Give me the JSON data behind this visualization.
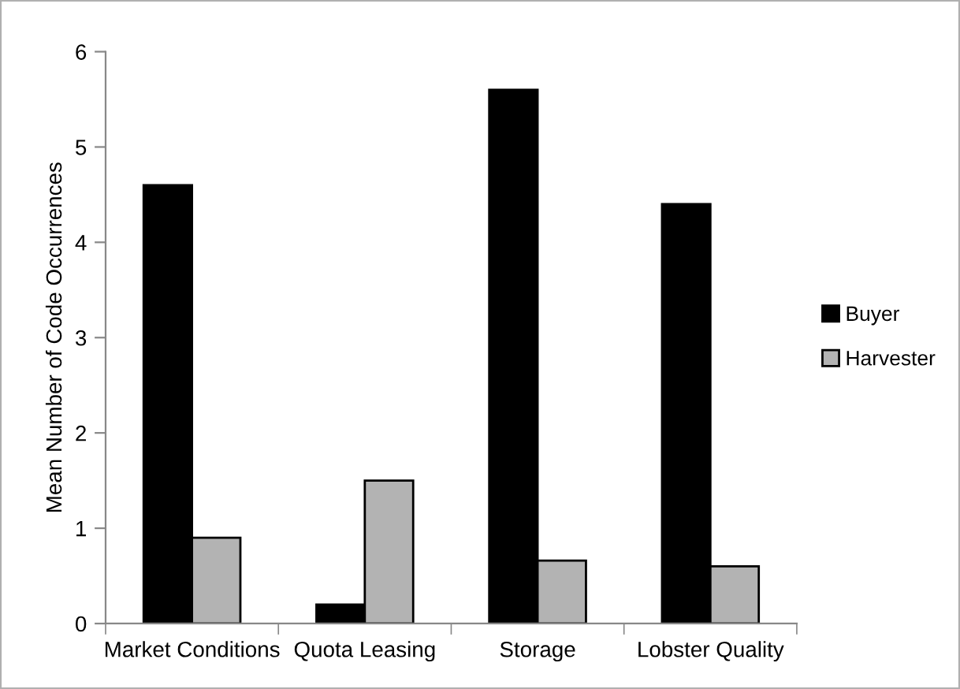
{
  "chart_data": {
    "type": "bar",
    "ylabel": "Mean Number of Code Occurrences",
    "categories": [
      "Market Conditions",
      "Quota Leasing",
      "Storage",
      "Lobster Quality"
    ],
    "series": [
      {
        "name": "Buyer",
        "color": "#000000",
        "values": [
          4.6,
          0.2,
          5.6,
          4.4
        ]
      },
      {
        "name": "Harvester",
        "color": "#b3b3b3",
        "values": [
          0.9,
          1.5,
          0.66,
          0.6
        ]
      }
    ],
    "ylim": [
      0,
      6
    ],
    "yticks": [
      0,
      1,
      2,
      3,
      4,
      5,
      6
    ],
    "grid": false,
    "legend": "right"
  }
}
